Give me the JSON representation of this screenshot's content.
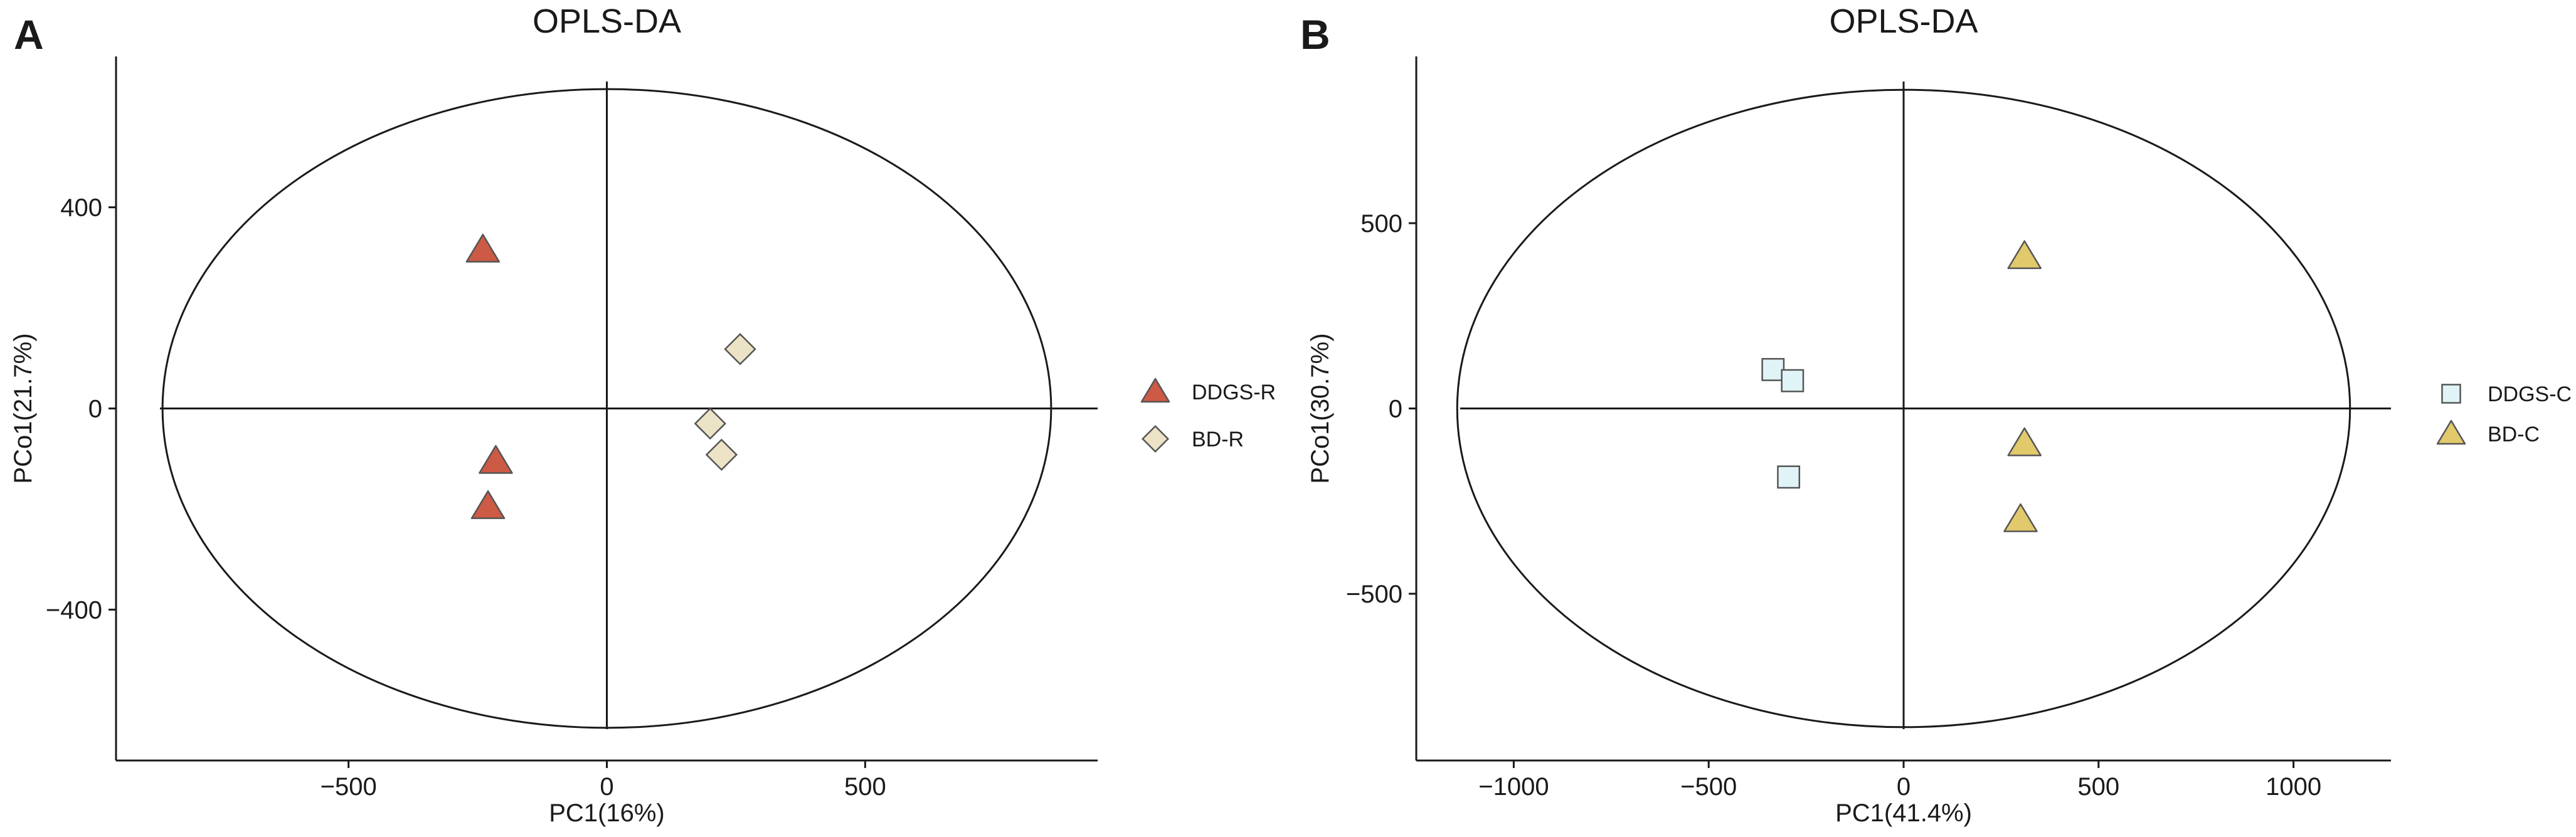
{
  "figure": "OPLS-DA score plots",
  "colors": {
    "DDGS-R": "#cc5a44",
    "BD-R": "#ece3c6",
    "DDGS-C": "#e0f4f7",
    "BD-C": "#e2c96c",
    "marker_stroke": "#555555",
    "axis": "#1a1a1a"
  },
  "chart_data": [
    {
      "panel": "A",
      "type": "scatter",
      "title": "OPLS-DA",
      "xlabel": "PC1(16%)",
      "ylabel": "PCo1(21.7%)",
      "xlim": [
        -950,
        950
      ],
      "ylim": [
        -700,
        700
      ],
      "x_ticks": [
        -500,
        0,
        500
      ],
      "y_ticks": [
        -400,
        0,
        400
      ],
      "grid": false,
      "zero_lines": true,
      "ellipse": {
        "rx": 860,
        "ry": 635
      },
      "legend_position": "right",
      "series": [
        {
          "name": "DDGS-R",
          "marker": "triangle",
          "color": "#cc5a44",
          "points": [
            [
              -240,
              315
            ],
            [
              -215,
              -105
            ],
            [
              -230,
              -195
            ]
          ]
        },
        {
          "name": "BD-R",
          "marker": "diamond",
          "color": "#ece3c6",
          "points": [
            [
              258,
              118
            ],
            [
              200,
              -30
            ],
            [
              222,
              -92
            ]
          ]
        }
      ]
    },
    {
      "panel": "B",
      "type": "scatter",
      "title": "OPLS-DA",
      "xlabel": "PC1(41.4%)",
      "ylabel": "PCo1(30.7%)",
      "xlim": [
        -1250,
        1250
      ],
      "ylim": [
        -950,
        950
      ],
      "x_ticks": [
        -1000,
        -500,
        0,
        500,
        1000
      ],
      "y_ticks": [
        -500,
        0,
        500
      ],
      "grid": false,
      "zero_lines": true,
      "ellipse": {
        "rx": 1145,
        "ry": 860
      },
      "legend_position": "right",
      "series": [
        {
          "name": "DDGS-C",
          "marker": "square",
          "color": "#e0f4f7",
          "points": [
            [
              -335,
              105
            ],
            [
              -285,
              75
            ],
            [
              -295,
              -185
            ]
          ]
        },
        {
          "name": "BD-C",
          "marker": "triangle",
          "color": "#e2c96c",
          "points": [
            [
              310,
              410
            ],
            [
              310,
              -95
            ],
            [
              300,
              -300
            ]
          ]
        }
      ]
    }
  ]
}
